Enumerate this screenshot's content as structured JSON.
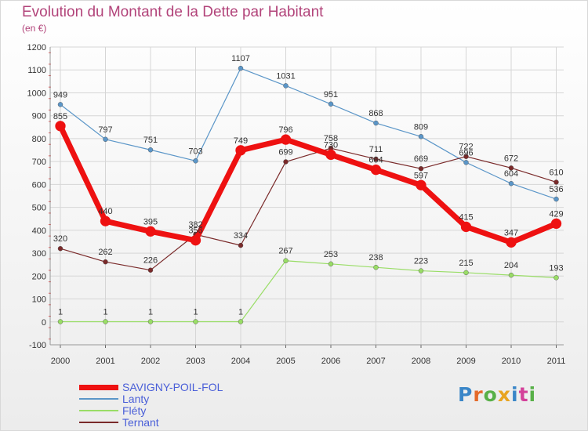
{
  "title": "Evolution du Montant de la Dette par Habitant",
  "unit_label": "(en €)",
  "logo": {
    "text": "Proxiti",
    "letters": [
      {
        "ch": "P",
        "color": "#3a86c8"
      },
      {
        "ch": "r",
        "color": "#e46a2a"
      },
      {
        "ch": "o",
        "color": "#58b048"
      },
      {
        "ch": "x",
        "color": "#e8a420"
      },
      {
        "ch": "i",
        "color": "#3a86c8"
      },
      {
        "ch": "t",
        "color": "#d4409a"
      },
      {
        "ch": "i",
        "color": "#58b048"
      }
    ]
  },
  "chart_data": {
    "type": "line",
    "title": "Evolution du Montant de la Dette par Habitant",
    "ylabel": "(en €)",
    "xlabel": "",
    "ylim": [
      -100,
      1200
    ],
    "yticks": [
      -100,
      0,
      100,
      200,
      300,
      400,
      500,
      600,
      700,
      800,
      900,
      1000,
      1100,
      1200
    ],
    "categories": [
      "2000",
      "2001",
      "2002",
      "2003",
      "2004",
      "2005",
      "2006",
      "2007",
      "2008",
      "2009",
      "2010",
      "2011"
    ],
    "grid": true,
    "legend_position": "bottom-left",
    "series": [
      {
        "name": "SAVIGNY-POIL-FOL",
        "color": "#ee1111",
        "width": 7,
        "values": [
          855,
          440,
          395,
          356,
          749,
          796,
          730,
          664,
          597,
          415,
          347,
          429
        ]
      },
      {
        "name": "Lanty",
        "color": "#5b96c8",
        "width": 1.2,
        "values": [
          949,
          797,
          751,
          703,
          1107,
          1031,
          951,
          868,
          809,
          696,
          604,
          536
        ]
      },
      {
        "name": "Fléty",
        "color": "#99dd66",
        "width": 1.2,
        "values": [
          1,
          1,
          1,
          1,
          1,
          267,
          253,
          238,
          223,
          215,
          204,
          193
        ]
      },
      {
        "name": "Ternant",
        "color": "#7a2a2a",
        "width": 1.2,
        "values": [
          320,
          262,
          226,
          382,
          334,
          699,
          758,
          711,
          669,
          722,
          672,
          610
        ]
      }
    ]
  }
}
